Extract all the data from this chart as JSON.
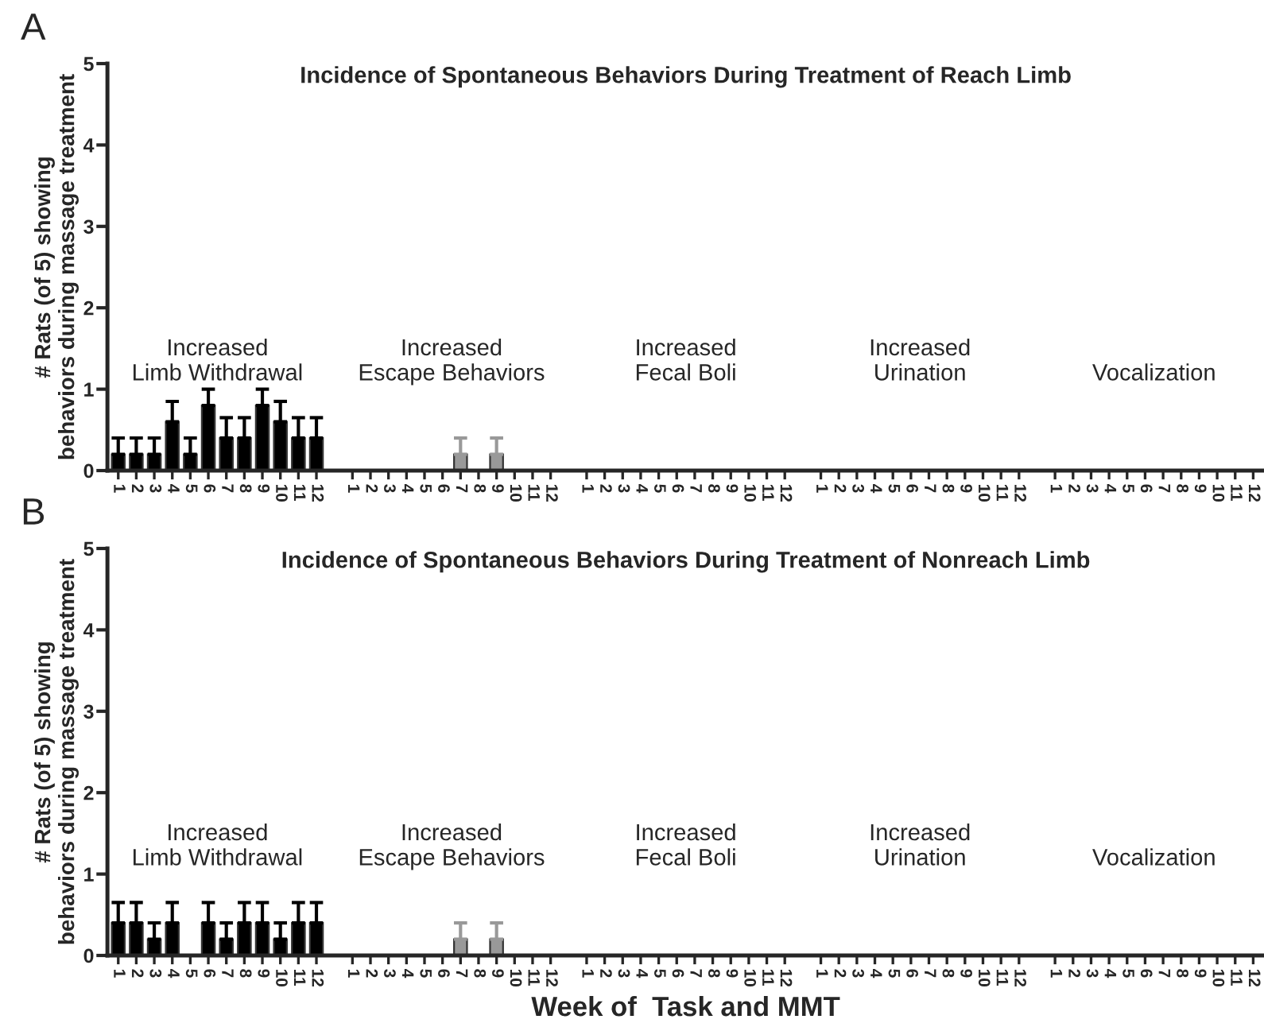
{
  "chart_data": [
    {
      "type": "bar",
      "title": "Incidence of Spontaneous Behaviors During Treatment of Reach Limb",
      "ylabel": "# Rats (of 5) showing\nbehaviors during massage treatment",
      "annotations": [
        "A",
        "Increased\nLimb Withdrawal",
        "Increased\nEscape Behaviors",
        "Increased\nFecal Boli",
        "Increased\nUrination",
        "Vocalization"
      ],
      "categories": [
        "1",
        "2",
        "3",
        "4",
        "5",
        "6",
        "7",
        "8",
        "9",
        "10",
        "11",
        "12",
        null,
        "1",
        "2",
        "3",
        "4",
        "5",
        "6",
        "7",
        "8",
        "9",
        "10",
        "11",
        "12",
        null,
        "1",
        "2",
        "3",
        "4",
        "5",
        "6",
        "7",
        "8",
        "9",
        "10",
        "11",
        "12",
        null,
        "1",
        "2",
        "3",
        "4",
        "5",
        "6",
        "7",
        "8",
        "9",
        "10",
        "11",
        "12",
        null,
        "1",
        "2",
        "3",
        "4",
        "5",
        "6",
        "7",
        "8",
        "9",
        "10",
        "11",
        "12"
      ],
      "values": [
        0.2,
        0.2,
        0.2,
        0.6,
        0.2,
        0.8,
        0.4,
        0.4,
        0.8,
        0.6,
        0.4,
        0.4,
        null,
        0,
        0,
        0,
        0,
        0,
        0,
        0.2,
        0,
        0.2,
        0,
        0,
        0,
        null,
        0,
        0,
        0,
        0,
        0,
        0,
        0,
        0,
        0,
        0,
        0,
        0,
        null,
        0,
        0,
        0,
        0,
        0,
        0,
        0,
        0,
        0,
        0,
        0,
        0,
        null,
        0,
        0,
        0,
        0,
        0,
        0,
        0,
        0,
        0,
        0,
        0,
        0
      ],
      "errors": [
        [
          0.2,
          0.4
        ],
        [
          0.2,
          0.4
        ],
        [
          0.2,
          0.4
        ],
        [
          0.6,
          0.85
        ],
        [
          0.2,
          0.4
        ],
        [
          0.8,
          1.0
        ],
        [
          0.4,
          0.65
        ],
        [
          0.4,
          0.65
        ],
        [
          0.8,
          1.0
        ],
        [
          0.6,
          0.85
        ],
        [
          0.4,
          0.65
        ],
        [
          0.4,
          0.65
        ],
        null,
        null,
        null,
        null,
        null,
        null,
        null,
        [
          0.2,
          0.4
        ],
        null,
        [
          0.2,
          0.4
        ],
        null,
        null,
        null,
        null,
        null,
        null,
        null,
        null,
        null,
        null,
        null,
        null,
        null,
        null,
        null,
        null,
        null,
        null,
        null,
        null,
        null,
        null,
        null,
        null,
        null,
        null,
        null,
        null,
        null,
        null,
        null,
        null,
        null,
        null,
        null,
        null,
        null,
        null,
        null,
        null,
        null,
        null
      ],
      "colors": [
        "#000000",
        "#000000",
        "#000000",
        "#000000",
        "#000000",
        "#000000",
        "#000000",
        "#000000",
        "#000000",
        "#000000",
        "#000000",
        "#000000",
        "#000000",
        "#999999",
        "#999999",
        "#999999",
        "#999999",
        "#999999",
        "#999999",
        "#999999",
        "#999999",
        "#999999",
        "#999999",
        "#999999",
        "#999999",
        "#000000",
        "#000000",
        "#000000",
        "#000000",
        "#000000",
        "#000000",
        "#000000",
        "#000000",
        "#000000",
        "#000000",
        "#000000",
        "#000000",
        "#000000",
        "#000000",
        "#000000",
        "#000000",
        "#000000",
        "#000000",
        "#000000",
        "#000000",
        "#000000",
        "#000000",
        "#000000",
        "#000000",
        "#000000",
        "#000000",
        "#000000",
        "#000000",
        "#000000",
        "#000000",
        "#000000",
        "#000000",
        "#000000",
        "#000000",
        "#000000",
        "#000000",
        "#000000",
        "#000000",
        "#000000"
      ],
      "ylim": [
        0,
        5
      ],
      "yticks": [
        0,
        1,
        2,
        3,
        4,
        5
      ],
      "grid": false,
      "legend": false
    },
    {
      "type": "bar",
      "title": "Incidence of Spontaneous Behaviors During Treatment of Nonreach Limb",
      "ylabel": "# Rats (of 5) showing\nbehaviors during massage treatment",
      "xlabel": "Week of  Task and MMT",
      "annotations": [
        "B",
        "Increased\nLimb Withdrawal",
        "Increased\nEscape Behaviors",
        "Increased\nFecal Boli",
        "Increased\nUrination",
        "Vocalization"
      ],
      "categories": [
        "1",
        "2",
        "3",
        "4",
        "5",
        "6",
        "7",
        "8",
        "9",
        "10",
        "11",
        "12",
        null,
        "1",
        "2",
        "3",
        "4",
        "5",
        "6",
        "7",
        "8",
        "9",
        "10",
        "11",
        "12",
        null,
        "1",
        "2",
        "3",
        "4",
        "5",
        "6",
        "7",
        "8",
        "9",
        "10",
        "11",
        "12",
        null,
        "1",
        "2",
        "3",
        "4",
        "5",
        "6",
        "7",
        "8",
        "9",
        "10",
        "11",
        "12",
        null,
        "1",
        "2",
        "3",
        "4",
        "5",
        "6",
        "7",
        "8",
        "9",
        "10",
        "11",
        "12"
      ],
      "values": [
        0.4,
        0.4,
        0.2,
        0.4,
        0,
        0.4,
        0.2,
        0.4,
        0.4,
        0.2,
        0.4,
        0.4,
        null,
        0,
        0,
        0,
        0,
        0,
        0,
        0.2,
        0,
        0.2,
        0,
        0,
        0,
        null,
        0,
        0,
        0,
        0,
        0,
        0,
        0,
        0,
        0,
        0,
        0,
        0,
        null,
        0,
        0,
        0,
        0,
        0,
        0,
        0,
        0,
        0,
        0,
        0,
        0,
        null,
        0,
        0,
        0,
        0,
        0,
        0,
        0,
        0,
        0,
        0,
        0,
        0
      ],
      "errors": [
        [
          0.4,
          0.65
        ],
        [
          0.4,
          0.65
        ],
        [
          0.2,
          0.4
        ],
        [
          0.4,
          0.65
        ],
        null,
        [
          0.4,
          0.65
        ],
        [
          0.2,
          0.4
        ],
        [
          0.4,
          0.65
        ],
        [
          0.4,
          0.65
        ],
        [
          0.2,
          0.4
        ],
        [
          0.4,
          0.65
        ],
        [
          0.4,
          0.65
        ],
        null,
        null,
        null,
        null,
        null,
        null,
        null,
        [
          0.2,
          0.4
        ],
        null,
        [
          0.2,
          0.4
        ],
        null,
        null,
        null,
        null,
        null,
        null,
        null,
        null,
        null,
        null,
        null,
        null,
        null,
        null,
        null,
        null,
        null,
        null,
        null,
        null,
        null,
        null,
        null,
        null,
        null,
        null,
        null,
        null,
        null,
        null,
        null,
        null,
        null,
        null,
        null,
        null,
        null,
        null,
        null,
        null,
        null,
        null
      ],
      "colors": [
        "#000000",
        "#000000",
        "#000000",
        "#000000",
        "#000000",
        "#000000",
        "#000000",
        "#000000",
        "#000000",
        "#000000",
        "#000000",
        "#000000",
        "#000000",
        "#999999",
        "#999999",
        "#999999",
        "#999999",
        "#999999",
        "#999999",
        "#999999",
        "#999999",
        "#999999",
        "#999999",
        "#999999",
        "#999999",
        "#000000",
        "#000000",
        "#000000",
        "#000000",
        "#000000",
        "#000000",
        "#000000",
        "#000000",
        "#000000",
        "#000000",
        "#000000",
        "#000000",
        "#000000",
        "#000000",
        "#000000",
        "#000000",
        "#000000",
        "#000000",
        "#000000",
        "#000000",
        "#000000",
        "#000000",
        "#000000",
        "#000000",
        "#000000",
        "#000000",
        "#000000",
        "#000000",
        "#000000",
        "#000000",
        "#000000",
        "#000000",
        "#000000",
        "#000000",
        "#000000",
        "#000000",
        "#000000",
        "#000000",
        "#000000"
      ],
      "ylim": [
        0,
        5
      ],
      "yticks": [
        0,
        1,
        2,
        3,
        4,
        5
      ],
      "grid": false,
      "legend": false
    }
  ]
}
